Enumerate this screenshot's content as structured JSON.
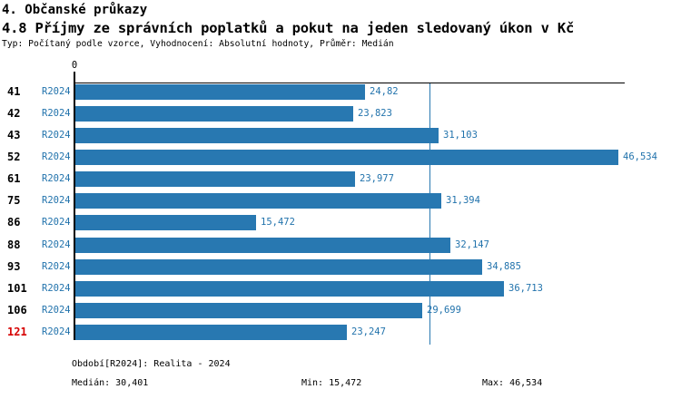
{
  "header": {
    "title": "4. Občanské průkazy",
    "subtitle": "4.8 Příjmy ze správních poplatků a pokut na jeden sledovaný úkon v Kč",
    "meta": "Typ: Počítaný podle vzorce, Vyhodnocení: Absolutní hodnoty, Průměr: Medián"
  },
  "colors": {
    "bar_blue": "#2878b1",
    "text_blue": "#2273ac",
    "highlight_red": "#d60000",
    "axis_black": "#000000"
  },
  "chart_data": {
    "type": "bar",
    "orientation": "horizontal",
    "title": "4.8 Příjmy ze správních poplatků a pokut na jeden sledovaný úkon v Kč",
    "xlabel": "Kč",
    "x_zero_label": "0",
    "x_max_estimate": 47.08,
    "grid": false,
    "median_reference_line": 30.401,
    "categories": [
      "41",
      "42",
      "43",
      "52",
      "61",
      "75",
      "86",
      "88",
      "93",
      "101",
      "106",
      "121"
    ],
    "series": [
      {
        "name": "R2024",
        "values": [
          24.82,
          23.823,
          31.103,
          46.534,
          23.977,
          31.394,
          15.472,
          32.147,
          34.885,
          36.713,
          29.699,
          23.247
        ],
        "value_labels": [
          "24,82",
          "23,823",
          "31,103",
          "46,534",
          "23,977",
          "31,394",
          "15,472",
          "32,147",
          "34,885",
          "36,713",
          "29,699",
          "23,247"
        ]
      }
    ],
    "highlighted_categories": [
      "121"
    ]
  },
  "footer": {
    "period_info": "Období[R2024]: Realita - 2024",
    "median": "Medián: 30,401",
    "min": "Min: 15,472",
    "max": "Max: 46,534"
  }
}
